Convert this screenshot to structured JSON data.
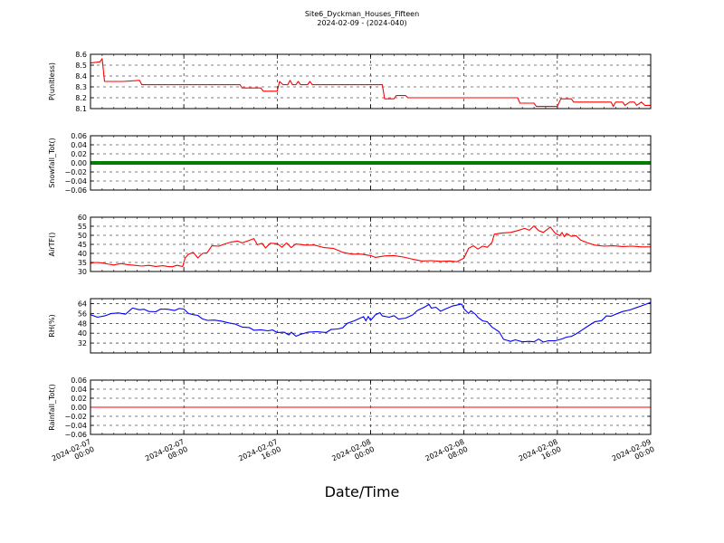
{
  "figure": {
    "title": "Site6_Dyckman_Houses_Fifteen",
    "subtitle": "2024-02-09 - (2024-040)",
    "xlabel": "Date/Time"
  },
  "chart_data": [
    {
      "type": "line",
      "ylabel": "P(unitless)",
      "ylim": [
        8.1,
        8.6
      ],
      "yticks": [
        "8.6",
        "8.5",
        "8.4",
        "8.3",
        "8.2",
        "8.1"
      ],
      "grid": true,
      "series": [
        {
          "color": "#ff0000",
          "points": [
            [
              0,
              8.52
            ],
            [
              0.8,
              8.53
            ],
            [
              1.0,
              8.56
            ],
            [
              1.2,
              8.35
            ],
            [
              2.8,
              8.35
            ],
            [
              4.2,
              8.36
            ],
            [
              4.4,
              8.32
            ],
            [
              6.0,
              8.32
            ],
            [
              12.8,
              8.32
            ],
            [
              13.0,
              8.29
            ],
            [
              14.6,
              8.29
            ],
            [
              14.8,
              8.26
            ],
            [
              16.0,
              8.26
            ],
            [
              16.2,
              8.35
            ],
            [
              16.5,
              8.32
            ],
            [
              16.9,
              8.32
            ],
            [
              17.1,
              8.36
            ],
            [
              17.3,
              8.32
            ],
            [
              17.6,
              8.32
            ],
            [
              17.8,
              8.35
            ],
            [
              18.0,
              8.32
            ],
            [
              18.6,
              8.32
            ],
            [
              18.8,
              8.35
            ],
            [
              19.0,
              8.32
            ],
            [
              25.0,
              8.32
            ],
            [
              25.2,
              8.19
            ],
            [
              26.0,
              8.19
            ],
            [
              26.2,
              8.22
            ],
            [
              27.0,
              8.22
            ],
            [
              27.2,
              8.2
            ],
            [
              36.6,
              8.2
            ],
            [
              36.8,
              8.15
            ],
            [
              38.0,
              8.15
            ],
            [
              38.2,
              8.12
            ],
            [
              40.0,
              8.12
            ],
            [
              40.3,
              8.19
            ],
            [
              41.2,
              8.19
            ],
            [
              41.4,
              8.16
            ],
            [
              44.6,
              8.16
            ],
            [
              44.8,
              8.12
            ],
            [
              45.0,
              8.16
            ],
            [
              45.6,
              8.16
            ],
            [
              45.8,
              8.13
            ],
            [
              46.2,
              8.16
            ],
            [
              46.6,
              8.16
            ],
            [
              46.8,
              8.13
            ],
            [
              47.2,
              8.16
            ],
            [
              47.5,
              8.13
            ],
            [
              48.0,
              8.13
            ]
          ]
        }
      ],
      "x_date_ticks": [
        "2024-02-07 00:00",
        "2024-02-07 08:00",
        "2024-02-07 16:00",
        "2024-02-08 00:00",
        "2024-02-08 08:00",
        "2024-02-08 16:00",
        "2024-02-09 00:00"
      ],
      "x_range_hours": [
        0,
        48
      ]
    },
    {
      "type": "line",
      "ylabel": "Snowfall_Tot()",
      "ylim": [
        -0.06,
        0.06
      ],
      "yticks": [
        "0.06",
        "0.04",
        "0.02",
        "0.00",
        "−0.02",
        "−0.04",
        "−0.06"
      ],
      "grid": true,
      "series": [
        {
          "color": "#008000",
          "thick": true,
          "points": [
            [
              0,
              0
            ],
            [
              48,
              0
            ]
          ]
        }
      ],
      "x_range_hours": [
        0,
        48
      ]
    },
    {
      "type": "line",
      "ylabel": "AirTF()",
      "ylim": [
        30,
        60
      ],
      "yticks": [
        "60",
        "55",
        "50",
        "45",
        "40",
        "35",
        "30"
      ],
      "grid": true,
      "series": [
        {
          "color": "#ff0000",
          "points": [
            [
              0,
              34.5
            ],
            [
              0.4,
              35
            ],
            [
              1.0,
              34.8
            ],
            [
              1.6,
              34
            ],
            [
              2.0,
              33.6
            ],
            [
              2.6,
              34.4
            ],
            [
              3.2,
              33.8
            ],
            [
              3.8,
              33.4
            ],
            [
              4.4,
              33
            ],
            [
              5.0,
              33.4
            ],
            [
              5.6,
              32.8
            ],
            [
              6.2,
              33.2
            ],
            [
              6.6,
              32.8
            ],
            [
              7.0,
              32.6
            ],
            [
              7.4,
              33.4
            ],
            [
              7.9,
              32.8
            ],
            [
              8.1,
              37.5
            ],
            [
              8.4,
              39.5
            ],
            [
              8.8,
              40.6
            ],
            [
              9.2,
              37.5
            ],
            [
              9.6,
              40
            ],
            [
              10.0,
              40.4
            ],
            [
              10.4,
              44.2
            ],
            [
              11.0,
              44
            ],
            [
              11.4,
              45
            ],
            [
              12.0,
              46.2
            ],
            [
              12.6,
              46.8
            ],
            [
              13.0,
              45.8
            ],
            [
              13.6,
              47.2
            ],
            [
              14.0,
              48.2
            ],
            [
              14.3,
              44.8
            ],
            [
              14.7,
              45.6
            ],
            [
              15.0,
              43
            ],
            [
              15.4,
              45.6
            ],
            [
              16.0,
              45.4
            ],
            [
              16.4,
              43.4
            ],
            [
              16.8,
              45.8
            ],
            [
              17.2,
              43.2
            ],
            [
              17.6,
              45.2
            ],
            [
              18.4,
              44.6
            ],
            [
              19.2,
              44.6
            ],
            [
              20.0,
              43.2
            ],
            [
              20.8,
              42.8
            ],
            [
              21.6,
              40.6
            ],
            [
              22.4,
              39.6
            ],
            [
              23.2,
              39.6
            ],
            [
              24.0,
              38.8
            ],
            [
              24.4,
              37.8
            ],
            [
              25.2,
              38.6
            ],
            [
              26.0,
              38.8
            ],
            [
              26.8,
              38
            ],
            [
              27.6,
              36.8
            ],
            [
              28.4,
              35.8
            ],
            [
              29.2,
              36
            ],
            [
              30.0,
              35.6
            ],
            [
              30.8,
              35.8
            ],
            [
              31.4,
              35.4
            ],
            [
              32.0,
              37.4
            ],
            [
              32.4,
              42.8
            ],
            [
              32.8,
              44.2
            ],
            [
              33.2,
              42.4
            ],
            [
              33.6,
              44
            ],
            [
              34.0,
              43.4
            ],
            [
              34.4,
              46
            ],
            [
              34.6,
              50.6
            ],
            [
              35.2,
              51.2
            ],
            [
              36.0,
              51.6
            ],
            [
              36.6,
              52.6
            ],
            [
              37.2,
              53.8
            ],
            [
              37.6,
              52.8
            ],
            [
              38.0,
              55.2
            ],
            [
              38.4,
              52.6
            ],
            [
              38.8,
              51.6
            ],
            [
              39.4,
              54.6
            ],
            [
              39.8,
              51.2
            ],
            [
              40.2,
              49.8
            ],
            [
              40.4,
              51.6
            ],
            [
              40.6,
              49.2
            ],
            [
              40.8,
              51
            ],
            [
              41.2,
              49.4
            ],
            [
              41.6,
              49.8
            ],
            [
              42.0,
              47.4
            ],
            [
              42.6,
              45.8
            ],
            [
              43.2,
              44.6
            ],
            [
              44.0,
              44
            ],
            [
              44.8,
              44.2
            ],
            [
              45.6,
              43.8
            ],
            [
              46.4,
              44
            ],
            [
              47.2,
              43.6
            ],
            [
              48.0,
              43.6
            ]
          ]
        }
      ],
      "x_range_hours": [
        0,
        48
      ]
    },
    {
      "type": "line",
      "ylabel": "RH(%)",
      "ylim": [
        24,
        68
      ],
      "yticks": [
        "64",
        "56",
        "48",
        "40",
        "32"
      ],
      "grid": true,
      "series": [
        {
          "color": "#0000ff",
          "points": [
            [
              0,
              55
            ],
            [
              0.6,
              53
            ],
            [
              1.2,
              54
            ],
            [
              1.8,
              56
            ],
            [
              2.4,
              56.4
            ],
            [
              3.0,
              55.4
            ],
            [
              3.6,
              60.4
            ],
            [
              4.2,
              59
            ],
            [
              4.6,
              59.4
            ],
            [
              5.0,
              57.6
            ],
            [
              5.6,
              57.4
            ],
            [
              6.0,
              59.6
            ],
            [
              6.6,
              59.4
            ],
            [
              7.2,
              58.4
            ],
            [
              7.6,
              60
            ],
            [
              8.0,
              59.6
            ],
            [
              8.4,
              56
            ],
            [
              8.8,
              55
            ],
            [
              9.2,
              54.4
            ],
            [
              9.6,
              51.6
            ],
            [
              10.0,
              50.4
            ],
            [
              10.6,
              50.6
            ],
            [
              11.2,
              49.8
            ],
            [
              11.8,
              48.4
            ],
            [
              12.4,
              47.4
            ],
            [
              13.0,
              45
            ],
            [
              13.6,
              44.6
            ],
            [
              14.0,
              42.4
            ],
            [
              14.6,
              42.8
            ],
            [
              15.2,
              42
            ],
            [
              15.6,
              42.6
            ],
            [
              16.0,
              40.6
            ],
            [
              16.6,
              40.8
            ],
            [
              17.0,
              38.6
            ],
            [
              17.2,
              40.8
            ],
            [
              17.6,
              37.6
            ],
            [
              18.0,
              39
            ],
            [
              18.6,
              40.8
            ],
            [
              19.4,
              41.2
            ],
            [
              20.2,
              40.6
            ],
            [
              20.6,
              43
            ],
            [
              21.2,
              43.4
            ],
            [
              21.6,
              44.4
            ],
            [
              22.0,
              48
            ],
            [
              22.6,
              50
            ],
            [
              23.0,
              51.8
            ],
            [
              23.4,
              53.4
            ],
            [
              23.6,
              50
            ],
            [
              23.8,
              53.6
            ],
            [
              24.0,
              50.4
            ],
            [
              24.4,
              54.8
            ],
            [
              24.8,
              56.6
            ],
            [
              25.0,
              54
            ],
            [
              25.6,
              53
            ],
            [
              26.0,
              54.2
            ],
            [
              26.4,
              51.4
            ],
            [
              27.0,
              52.2
            ],
            [
              27.6,
              54.8
            ],
            [
              28.0,
              58.4
            ],
            [
              28.6,
              61
            ],
            [
              29.0,
              63.4
            ],
            [
              29.2,
              60.4
            ],
            [
              29.6,
              61
            ],
            [
              30.0,
              57.8
            ],
            [
              30.4,
              59.6
            ],
            [
              31.0,
              62
            ],
            [
              31.8,
              63.6
            ],
            [
              32.0,
              59.8
            ],
            [
              32.4,
              56
            ],
            [
              32.6,
              58.2
            ],
            [
              33.0,
              55.2
            ],
            [
              33.2,
              52.8
            ],
            [
              33.6,
              50
            ],
            [
              34.0,
              49.2
            ],
            [
              34.4,
              45
            ],
            [
              35.0,
              41.2
            ],
            [
              35.4,
              35
            ],
            [
              36.0,
              33.4
            ],
            [
              36.4,
              34.6
            ],
            [
              37.0,
              33
            ],
            [
              37.6,
              33.4
            ],
            [
              38.0,
              33
            ],
            [
              38.4,
              35.2
            ],
            [
              38.8,
              32.8
            ],
            [
              39.2,
              33.8
            ],
            [
              39.8,
              33.8
            ],
            [
              40.4,
              35.4
            ],
            [
              40.8,
              36.8
            ],
            [
              41.2,
              37.4
            ],
            [
              41.6,
              39.4
            ],
            [
              42.0,
              41.8
            ],
            [
              42.6,
              45.6
            ],
            [
              43.2,
              49.2
            ],
            [
              43.8,
              50.2
            ],
            [
              44.2,
              54
            ],
            [
              44.6,
              53.8
            ],
            [
              45.0,
              55.4
            ],
            [
              45.6,
              57.6
            ],
            [
              46.2,
              58.8
            ],
            [
              46.8,
              60.8
            ],
            [
              47.4,
              62.8
            ],
            [
              48.0,
              65
            ]
          ]
        }
      ],
      "x_range_hours": [
        0,
        48
      ]
    },
    {
      "type": "line",
      "ylabel": "Rainfall_Tot()",
      "ylim": [
        -0.06,
        0.06
      ],
      "yticks": [
        "0.06",
        "0.04",
        "0.02",
        "0.00",
        "−0.02",
        "−0.04",
        "−0.06"
      ],
      "grid": true,
      "series": [
        {
          "color": "#ff0000",
          "points": [
            [
              0,
              0
            ],
            [
              48,
              0
            ]
          ]
        }
      ],
      "x_range_hours": [
        0,
        48
      ]
    }
  ]
}
